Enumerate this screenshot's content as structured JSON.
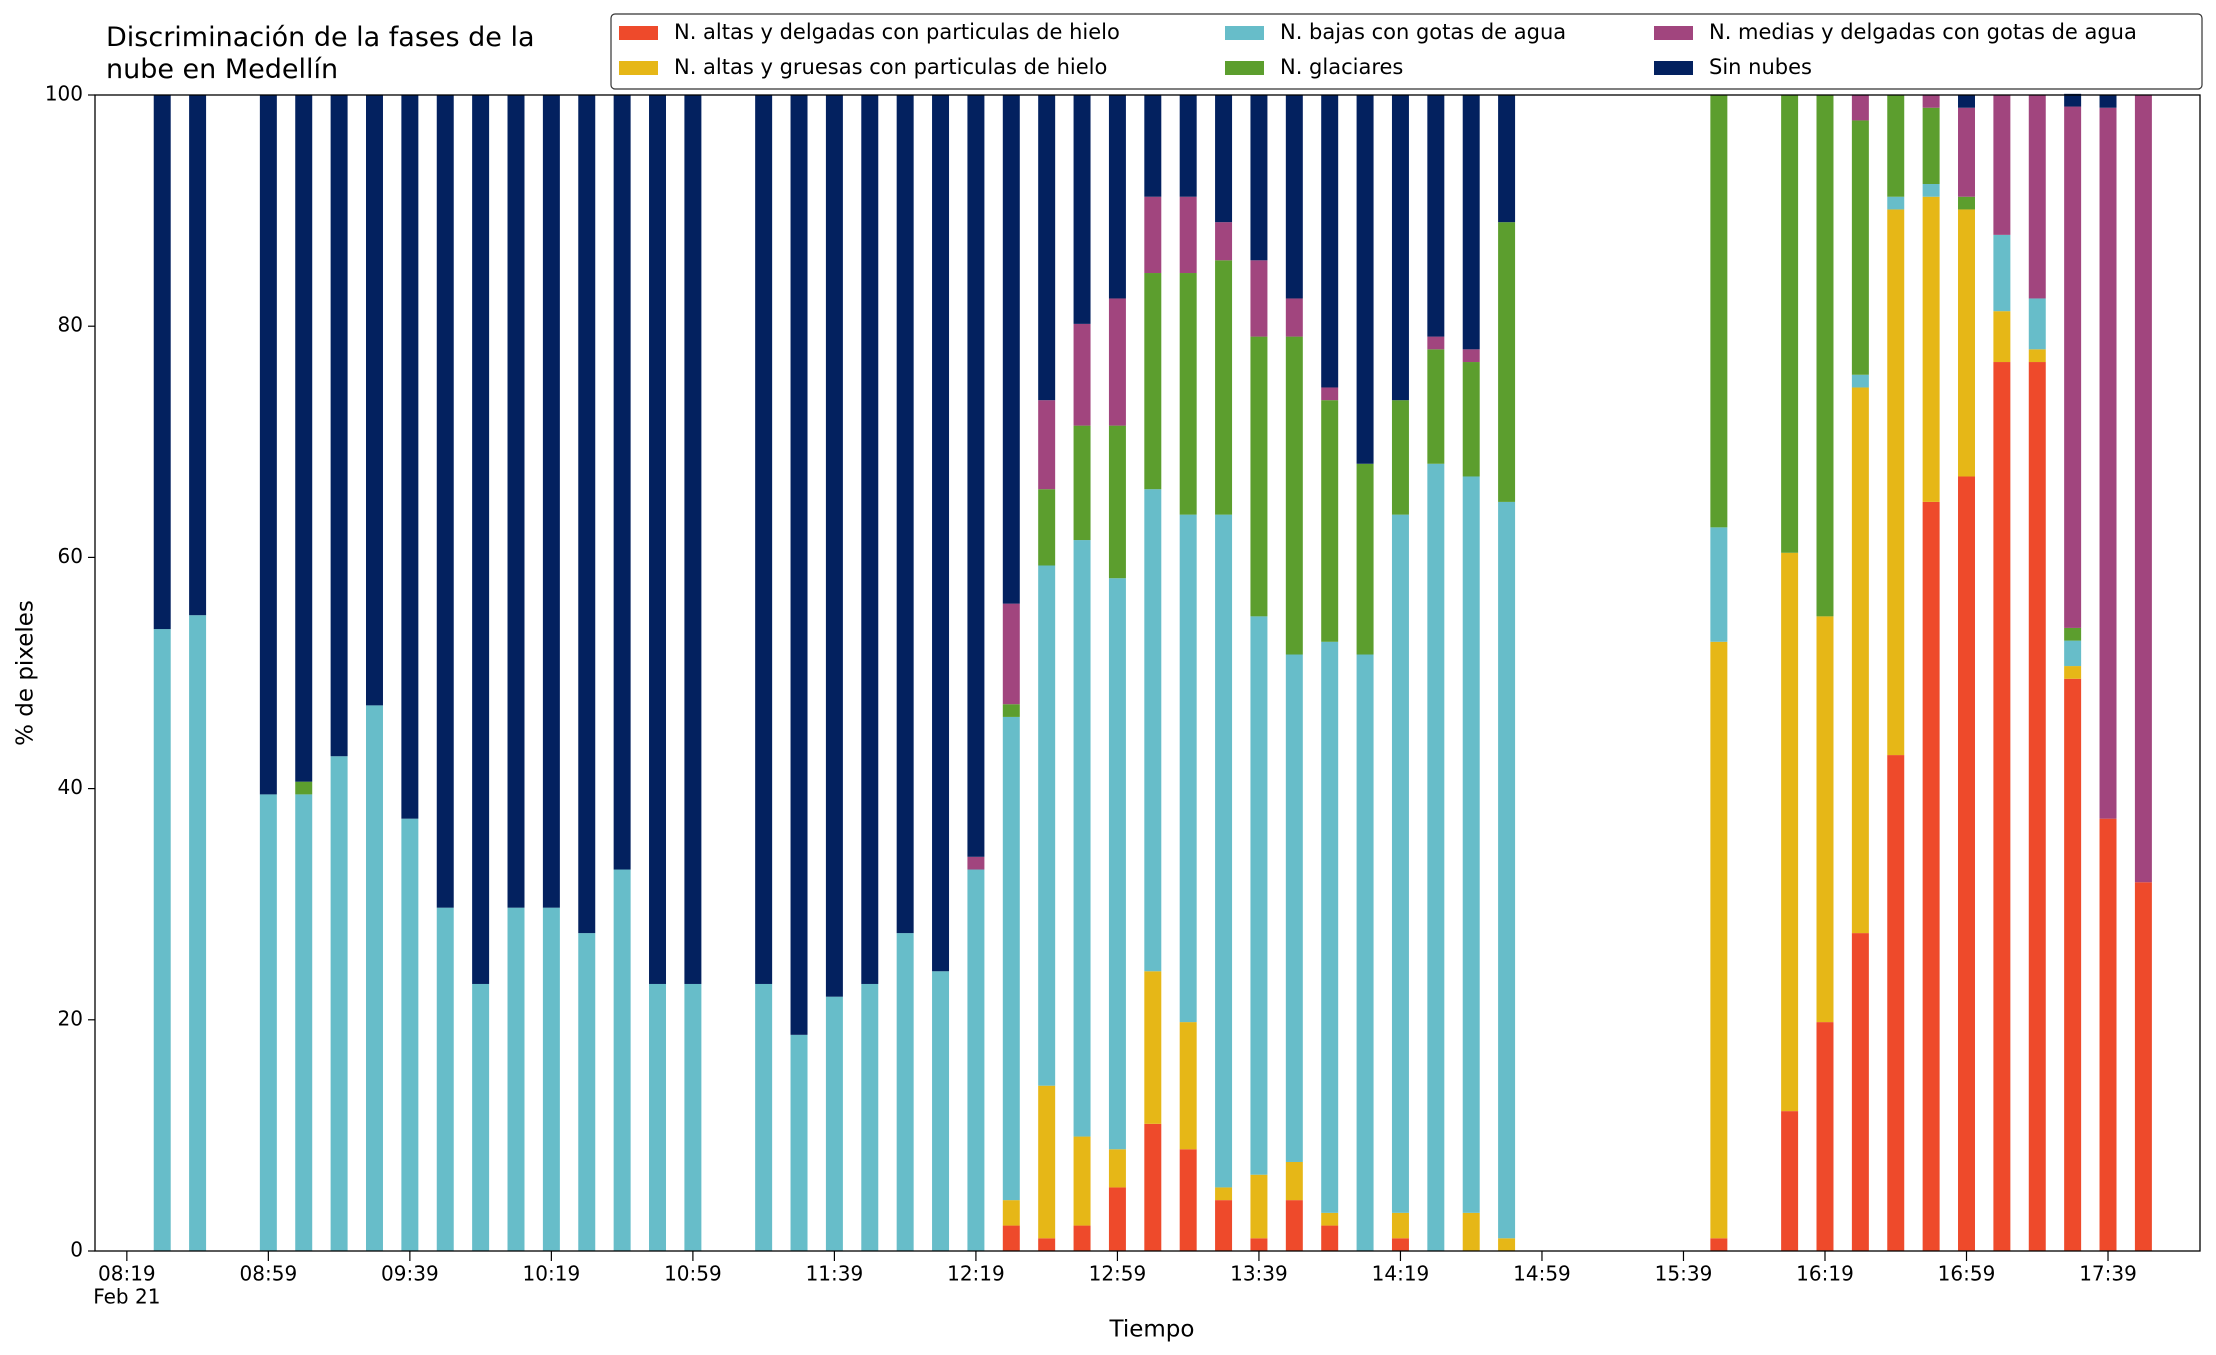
{
  "chart_data": {
    "type": "bar",
    "stacked": true,
    "title": "Discriminación de la fases de la nube en Medellín",
    "xlabel": "Tiempo",
    "ylabel": "% de pixeles",
    "date_label": "Feb 21",
    "legend": "top right",
    "x": [
      "08:29",
      "08:39",
      "08:59",
      "09:09",
      "09:19",
      "09:29",
      "09:39",
      "09:49",
      "09:59",
      "10:09",
      "10:19",
      "10:29",
      "10:39",
      "10:49",
      "10:59",
      "11:19",
      "11:29",
      "11:39",
      "11:49",
      "11:59",
      "12:09",
      "12:19",
      "12:29",
      "12:39",
      "12:49",
      "12:59",
      "13:09",
      "13:19",
      "13:29",
      "13:39",
      "13:49",
      "13:59",
      "14:09",
      "14:19",
      "14:29",
      "14:39",
      "14:49",
      "15:49",
      "16:09",
      "16:19",
      "16:29",
      "16:39",
      "16:49",
      "16:59",
      "17:09",
      "17:19",
      "17:29",
      "17:39",
      "17:49"
    ],
    "xlim": [
      "08:10",
      "18:05"
    ],
    "xticks": [
      "08:19",
      "08:59",
      "09:39",
      "10:19",
      "10:59",
      "11:39",
      "12:19",
      "12:59",
      "13:39",
      "14:19",
      "14:59",
      "15:39",
      "16:19",
      "16:59",
      "17:39"
    ],
    "ylim": [
      0,
      100
    ],
    "yticks": [
      0,
      20,
      40,
      60,
      80,
      100
    ],
    "series": [
      {
        "name": "N. altas y delgadas con particulas de hielo",
        "color": "#ee4a2b",
        "values": [
          0,
          0,
          0,
          0,
          0,
          0,
          0,
          0,
          0,
          0,
          0,
          0,
          0,
          0,
          0,
          0,
          0,
          0,
          0,
          0,
          0,
          0,
          2.2,
          1.1,
          2.2,
          5.5,
          11,
          8.8,
          4.4,
          1.1,
          4.4,
          2.2,
          0,
          1.1,
          0,
          0,
          0,
          1.1,
          12.1,
          19.8,
          27.5,
          42.9,
          64.8,
          67,
          76.9,
          76.9,
          49.5,
          37.4,
          31.9
        ]
      },
      {
        "name": "N. altas y gruesas con particulas de hielo",
        "color": "#e6b717",
        "values": [
          0,
          0,
          0,
          0,
          0,
          0,
          0,
          0,
          0,
          0,
          0,
          0,
          0,
          0,
          0,
          0,
          0,
          0,
          0,
          0,
          0,
          0,
          2.2,
          13.2,
          7.7,
          3.3,
          13.2,
          11,
          1.1,
          5.5,
          3.3,
          1.1,
          0,
          2.2,
          0,
          3.3,
          1.1,
          51.6,
          48.3,
          35.1,
          47.2,
          47.2,
          26.4,
          23.1,
          4.4,
          1.1,
          1.1,
          0,
          0
        ]
      },
      {
        "name": "N. bajas con gotas de agua",
        "color": "#67bdc9",
        "values": [
          53.8,
          55,
          39.5,
          39.5,
          42.8,
          47.2,
          37.4,
          29.7,
          23.1,
          29.7,
          29.7,
          27.5,
          33,
          23.1,
          23.1,
          23.1,
          18.7,
          22,
          23.1,
          27.5,
          24.2,
          33,
          41.8,
          45,
          51.6,
          49.4,
          41.7,
          43.9,
          58.2,
          48.3,
          43.9,
          49.4,
          51.6,
          60.4,
          68.1,
          63.7,
          63.7,
          9.9,
          0,
          0,
          1.1,
          1.1,
          1.1,
          0,
          6.6,
          4.4,
          2.2,
          0,
          0
        ]
      },
      {
        "name": "N. glaciares",
        "color": "#5c9e2e",
        "values": [
          0,
          0,
          0,
          1.1,
          0,
          0,
          0,
          0,
          0,
          0,
          0,
          0,
          0,
          0,
          0,
          0,
          0,
          0,
          0,
          0,
          0,
          0,
          1.1,
          6.6,
          9.9,
          13.2,
          18.7,
          20.9,
          22,
          24.2,
          27.5,
          20.9,
          16.5,
          9.9,
          9.9,
          9.9,
          24.2,
          37.4,
          39.6,
          45.1,
          22,
          8.8,
          6.6,
          1.1,
          0,
          0,
          1.1,
          0,
          0
        ]
      },
      {
        "name": "N. medias y delgadas con gotas de agua",
        "color": "#a1457e",
        "values": [
          0,
          0,
          0,
          0,
          0,
          0,
          0,
          0,
          0,
          0,
          0,
          0,
          0,
          0,
          0,
          0,
          0,
          0,
          0,
          0,
          0,
          1.1,
          8.7,
          7.7,
          8.8,
          11,
          6.6,
          6.6,
          3.3,
          6.6,
          3.3,
          1.1,
          0,
          0,
          1.1,
          1.1,
          0,
          0,
          0,
          0,
          2.2,
          0,
          1.1,
          7.7,
          12.1,
          17.6,
          45.1,
          61.5,
          68.1
        ]
      },
      {
        "name": "Sin nubes",
        "color": "#03215f",
        "values": [
          46.2,
          45,
          60.5,
          59.4,
          57.2,
          52.8,
          62.6,
          70.3,
          76.9,
          70.3,
          70.3,
          72.5,
          67,
          76.9,
          76.9,
          76.9,
          81.3,
          78,
          76.9,
          72.5,
          75.8,
          65.9,
          44,
          26.4,
          19.8,
          17.6,
          8.8,
          8.8,
          11,
          14.3,
          17.6,
          25.3,
          31.9,
          26.4,
          20.9,
          22,
          11,
          0,
          0,
          0,
          0,
          0,
          0,
          1.1,
          0,
          0,
          1.1,
          1.1,
          0
        ]
      }
    ]
  }
}
